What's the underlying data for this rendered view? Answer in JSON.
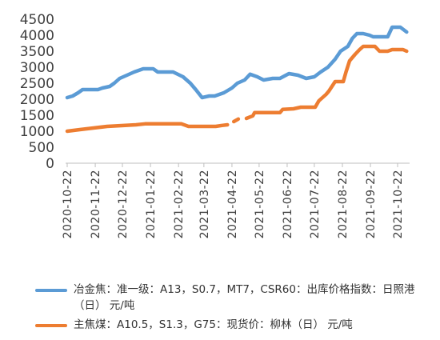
{
  "chart_data": {
    "type": "line",
    "ylim": [
      0,
      4500
    ],
    "yticks": [
      "0",
      "500",
      "1000",
      "1500",
      "2000",
      "2500",
      "3000",
      "3500",
      "4000",
      "4500"
    ],
    "xticks": [
      "2020-10-22",
      "2020-11-22",
      "2020-12-22",
      "2021-01-22",
      "2021-02-22",
      "2021-03-22",
      "2021-04-22",
      "2021-05-22",
      "2021-06-22",
      "2021-07-22",
      "2021-08-22",
      "2021-09-22",
      "2021-10-22"
    ],
    "colors": {
      "series1": "#5B9BD5",
      "series2": "#ED7D31"
    },
    "series": [
      {
        "name": "冶金焦：准一级：A13，S0.7，MT7，CSR60：出库价格指数：日照港（日） 元/吨",
        "points": [
          [
            "2020-10-22",
            2050
          ],
          [
            "2020-10-28",
            2100
          ],
          [
            "2020-11-03",
            2200
          ],
          [
            "2020-11-08",
            2300
          ],
          [
            "2020-11-25",
            2300
          ],
          [
            "2020-11-30",
            2350
          ],
          [
            "2020-12-08",
            2400
          ],
          [
            "2020-12-13",
            2500
          ],
          [
            "2020-12-19",
            2650
          ],
          [
            "2020-12-27",
            2750
          ],
          [
            "2021-01-04",
            2850
          ],
          [
            "2021-01-14",
            2950
          ],
          [
            "2021-01-25",
            2950
          ],
          [
            "2021-01-30",
            2850
          ],
          [
            "2021-02-16",
            2850
          ],
          [
            "2021-02-27",
            2700
          ],
          [
            "2021-03-07",
            2500
          ],
          [
            "2021-03-13",
            2300
          ],
          [
            "2021-03-20",
            2050
          ],
          [
            "2021-03-28",
            2100
          ],
          [
            "2021-04-03",
            2100
          ],
          [
            "2021-04-13",
            2200
          ],
          [
            "2021-04-22",
            2350
          ],
          [
            "2021-04-28",
            2500
          ],
          [
            "2021-05-06",
            2600
          ],
          [
            "2021-05-12",
            2780
          ],
          [
            "2021-05-20",
            2700
          ],
          [
            "2021-05-27",
            2600
          ],
          [
            "2021-06-06",
            2650
          ],
          [
            "2021-06-14",
            2650
          ],
          [
            "2021-06-24",
            2800
          ],
          [
            "2021-07-04",
            2750
          ],
          [
            "2021-07-13",
            2650
          ],
          [
            "2021-07-22",
            2700
          ],
          [
            "2021-07-29",
            2850
          ],
          [
            "2021-08-06",
            3000
          ],
          [
            "2021-08-14",
            3250
          ],
          [
            "2021-08-20",
            3500
          ],
          [
            "2021-08-28",
            3650
          ],
          [
            "2021-09-02",
            3900
          ],
          [
            "2021-09-07",
            4050
          ],
          [
            "2021-09-14",
            4050
          ],
          [
            "2021-09-21",
            4000
          ],
          [
            "2021-09-25",
            3950
          ],
          [
            "2021-10-11",
            3950
          ],
          [
            "2021-10-16",
            4250
          ],
          [
            "2021-10-25",
            4250
          ],
          [
            "2021-11-01",
            4100
          ]
        ]
      },
      {
        "name": "主焦煤：A10.5，S1.3，G75：现货价：柳林（日） 元/吨",
        "points": [
          [
            "2020-10-22",
            1000
          ],
          [
            "2020-11-05",
            1050
          ],
          [
            "2020-11-20",
            1100
          ],
          [
            "2020-12-05",
            1150
          ],
          [
            "2021-01-06",
            1200
          ],
          [
            "2021-01-16",
            1230
          ],
          [
            "2021-02-25",
            1230
          ],
          [
            "2021-03-05",
            1150
          ],
          [
            "2021-04-04",
            1150
          ],
          [
            "2021-04-11",
            1180
          ],
          [
            "2021-04-17",
            1200
          ],
          null,
          [
            "2021-04-24",
            1300
          ],
          [
            "2021-04-29",
            1380
          ],
          null,
          [
            "2021-05-08",
            1400
          ],
          [
            "2021-05-15",
            1480
          ],
          [
            "2021-05-17",
            1580
          ],
          [
            "2021-06-14",
            1580
          ],
          [
            "2021-06-17",
            1680
          ],
          [
            "2021-06-29",
            1700
          ],
          [
            "2021-07-07",
            1750
          ],
          [
            "2021-07-23",
            1750
          ],
          [
            "2021-07-27",
            1950
          ],
          [
            "2021-08-04",
            2150
          ],
          [
            "2021-08-07",
            2250
          ],
          [
            "2021-08-14",
            2550
          ],
          [
            "2021-08-23",
            2550
          ],
          [
            "2021-08-26",
            2850
          ],
          [
            "2021-08-30",
            3200
          ],
          [
            "2021-09-05",
            3400
          ],
          [
            "2021-09-10",
            3550
          ],
          [
            "2021-09-14",
            3650
          ],
          [
            "2021-09-27",
            3650
          ],
          [
            "2021-10-02",
            3500
          ],
          [
            "2021-10-11",
            3500
          ],
          [
            "2021-10-16",
            3550
          ],
          [
            "2021-10-28",
            3550
          ],
          [
            "2021-11-01",
            3500
          ]
        ]
      }
    ]
  }
}
